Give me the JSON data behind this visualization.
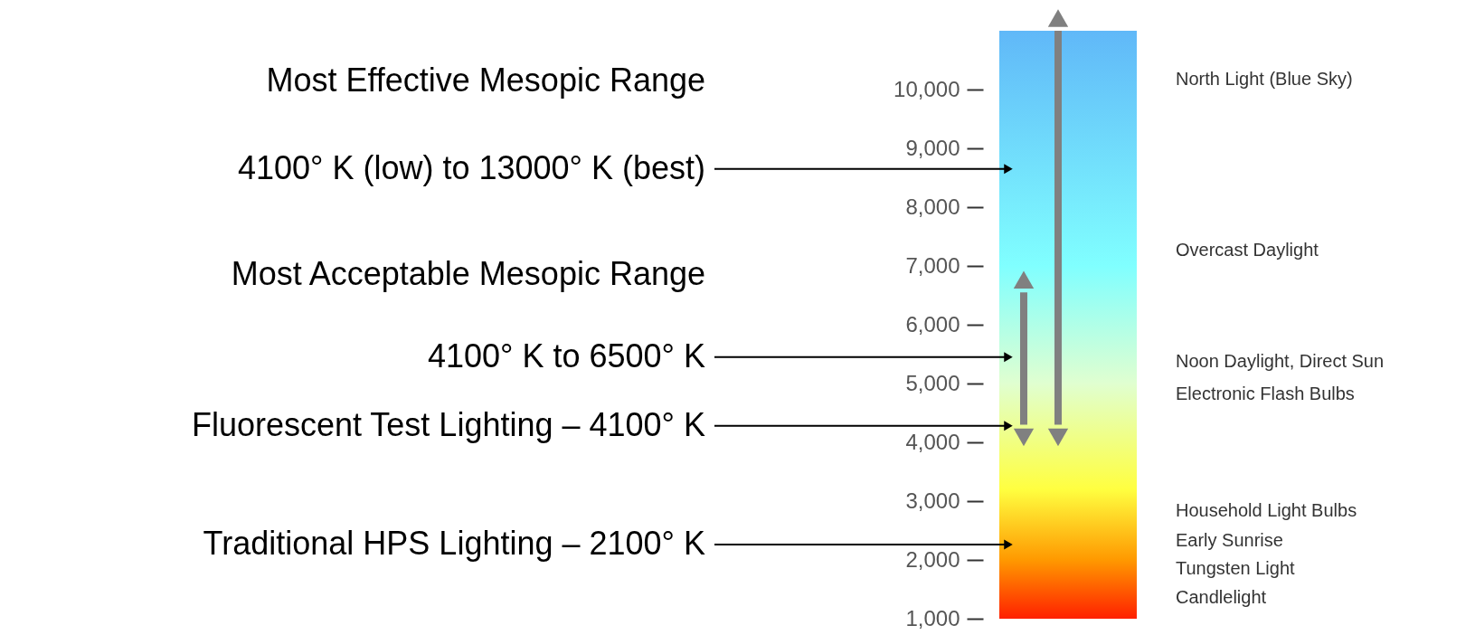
{
  "chart_data": {
    "type": "bar",
    "categories": [
      null,
      null
    ],
    "base": [
      4300,
      4300
    ],
    "values": [
      2250,
      6700
    ],
    "colors": [
      "#808080",
      "#808080"
    ],
    "ylim": [
      1000,
      11000
    ],
    "yticks": [
      {
        "value": 1000,
        "label": "1,000"
      },
      {
        "value": 2000,
        "label": "2,000"
      },
      {
        "value": 3000,
        "label": "3,000"
      },
      {
        "value": 4000,
        "label": "4,000"
      },
      {
        "value": 5000,
        "label": "5,000"
      },
      {
        "value": 6000,
        "label": "6,000"
      },
      {
        "value": 7000,
        "label": "7,000"
      },
      {
        "value": 8000,
        "label": "8,000"
      },
      {
        "value": 9000,
        "label": "9,000"
      },
      {
        "value": 10000,
        "label": "10,000"
      }
    ],
    "grid": false,
    "ref_lines": [
      {
        "axis": "y",
        "value": 8650,
        "label": "4100° K (low) to 13000° K (best)",
        "color": "#000000"
      },
      {
        "axis": "y",
        "value": 5450,
        "label": "4100° K to 6500° K",
        "color": "#000000"
      },
      {
        "axis": "y",
        "value": 4280,
        "label": "Fluorescent Test Lighting – 4100° K",
        "color": "#000000"
      },
      {
        "axis": "y",
        "value": 2260,
        "label": "Traditional HPS Lighting – 2100° K",
        "color": "#000000"
      }
    ],
    "annotations": [
      "Most Effective Mesopic Range",
      "Most Acceptable Mesopic Range",
      "North Light (Blue Sky)",
      "Overcast Daylight",
      "Noon Daylight, Direct Sun",
      "Electronic Flash Bulbs",
      "Household Light Bulbs",
      "Early Sunrise",
      "Tungsten Light",
      "Candlelight"
    ]
  }
}
